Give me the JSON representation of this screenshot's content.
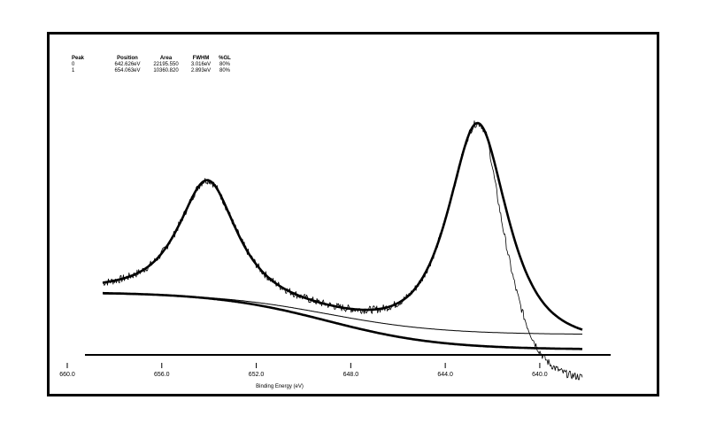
{
  "peak_table": {
    "headers": [
      "Peak",
      "Position",
      "Area",
      "FWHM",
      "%GL"
    ],
    "rows": [
      [
        "0",
        "642.626eV",
        "22195.550",
        "3.016eV",
        "80%"
      ],
      [
        "1",
        "654.063eV",
        "10360.820",
        "2.893eV",
        "80%"
      ]
    ]
  },
  "chart_data": {
    "type": "line",
    "title": "",
    "xlabel": "Binding Energy (eV)",
    "ylabel": "",
    "x_reversed": true,
    "xlim": [
      660.0,
      637.0
    ],
    "x_ticks": [
      660.0,
      656.0,
      652.0,
      648.0,
      644.0,
      640.0
    ],
    "x_tick_labels": [
      "660.0",
      "656.0",
      "652.0",
      "648.0",
      "644.0",
      "640.0"
    ],
    "y_ticks_shown": false,
    "grid": false,
    "peaks": [
      {
        "position": 642.626,
        "area": 22195.55,
        "fwhm": 3.016,
        "gl_percent": 80,
        "height": 1.0
      },
      {
        "position": 654.063,
        "area": 10360.82,
        "fwhm": 2.893,
        "gl_percent": 80,
        "height": 0.52
      }
    ],
    "baseline": {
      "start": 0.0,
      "end": -0.26,
      "step_center": 649.0
    },
    "x_range_data": [
      658.5,
      638.2
    ],
    "series": [
      {
        "role": "raw-spectrum",
        "style": "thin-noisy"
      },
      {
        "role": "peak-envelope",
        "style": "thick"
      },
      {
        "role": "background",
        "style": "thick"
      },
      {
        "role": "fit-sum",
        "style": "thin"
      }
    ]
  }
}
